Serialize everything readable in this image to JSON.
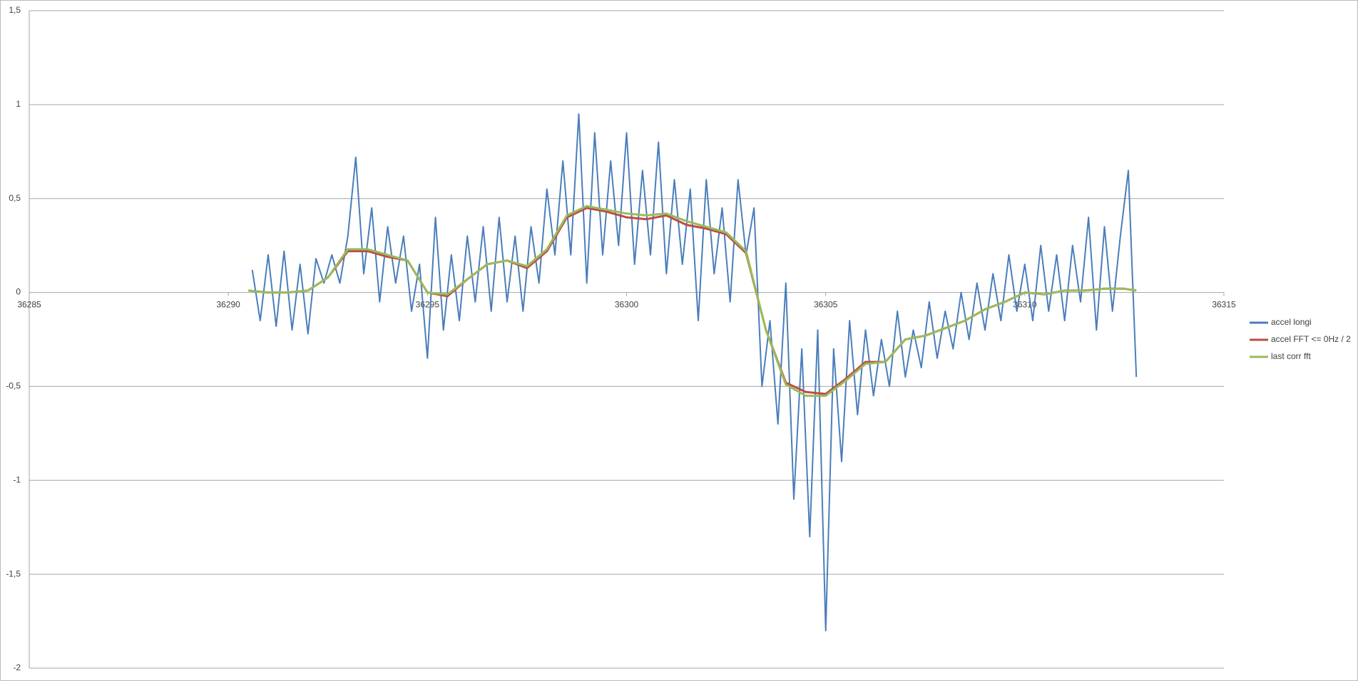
{
  "chart_data": {
    "type": "line",
    "xlim": [
      36285,
      36315
    ],
    "xticks": [
      36285,
      36290,
      36295,
      36300,
      36305,
      36310,
      36315
    ],
    "ylim": [
      -2,
      1.5
    ],
    "yticks": [
      -2,
      {
        "value": -1.5,
        "label": "-1,5"
      },
      -1,
      {
        "value": -0.5,
        "label": "-0,5"
      },
      0,
      {
        "value": 0.5,
        "label": "0,5"
      },
      1,
      {
        "value": 1.5,
        "label": "1,5"
      }
    ],
    "grid": true,
    "legend": "right",
    "series": [
      {
        "name": "accel longi",
        "color": "#4a7ebb",
        "x": [
          36290.6,
          36290.8,
          36291.0,
          36291.2,
          36291.4,
          36291.6,
          36291.8,
          36292.0,
          36292.2,
          36292.4,
          36292.6,
          36292.8,
          36293.0,
          36293.2,
          36293.4,
          36293.6,
          36293.8,
          36294.0,
          36294.2,
          36294.4,
          36294.6,
          36294.8,
          36295.0,
          36295.2,
          36295.4,
          36295.6,
          36295.8,
          36296.0,
          36296.2,
          36296.4,
          36296.6,
          36296.8,
          36297.0,
          36297.2,
          36297.4,
          36297.6,
          36297.8,
          36298.0,
          36298.2,
          36298.4,
          36298.6,
          36298.8,
          36299.0,
          36299.2,
          36299.4,
          36299.6,
          36299.8,
          36300.0,
          36300.2,
          36300.4,
          36300.6,
          36300.8,
          36301.0,
          36301.2,
          36301.4,
          36301.6,
          36301.8,
          36302.0,
          36302.2,
          36302.4,
          36302.6,
          36302.8,
          36303.0,
          36303.2,
          36303.4,
          36303.6,
          36303.8,
          36304.0,
          36304.2,
          36304.4,
          36304.6,
          36304.8,
          36305.0,
          36305.2,
          36305.4,
          36305.6,
          36305.8,
          36306.0,
          36306.2,
          36306.4,
          36306.6,
          36306.8,
          36307.0,
          36307.2,
          36307.4,
          36307.6,
          36307.8,
          36308.0,
          36308.2,
          36308.4,
          36308.6,
          36308.8,
          36309.0,
          36309.2,
          36309.4,
          36309.6,
          36309.8,
          36310.0,
          36310.2,
          36310.4,
          36310.6,
          36310.8,
          36311.0,
          36311.2,
          36311.4,
          36311.6,
          36311.8,
          36312.0,
          36312.2,
          36312.4,
          36312.6,
          36312.8
        ],
        "values": [
          0.12,
          -0.15,
          0.2,
          -0.18,
          0.22,
          -0.2,
          0.15,
          -0.22,
          0.18,
          0.05,
          0.2,
          0.05,
          0.3,
          0.72,
          0.1,
          0.45,
          -0.05,
          0.35,
          0.05,
          0.3,
          -0.1,
          0.15,
          -0.35,
          0.4,
          -0.2,
          0.2,
          -0.15,
          0.3,
          -0.05,
          0.35,
          -0.1,
          0.4,
          -0.05,
          0.3,
          -0.1,
          0.35,
          0.05,
          0.55,
          0.2,
          0.7,
          0.2,
          0.95,
          0.05,
          0.85,
          0.2,
          0.7,
          0.25,
          0.85,
          0.15,
          0.65,
          0.2,
          0.8,
          0.1,
          0.6,
          0.15,
          0.55,
          -0.15,
          0.6,
          0.1,
          0.45,
          -0.05,
          0.6,
          0.2,
          0.45,
          -0.5,
          -0.15,
          -0.7,
          0.05,
          -1.1,
          -0.3,
          -1.3,
          -0.2,
          -1.8,
          -0.3,
          -0.9,
          -0.15,
          -0.65,
          -0.2,
          -0.55,
          -0.25,
          -0.5,
          -0.1,
          -0.45,
          -0.2,
          -0.4,
          -0.05,
          -0.35,
          -0.1,
          -0.3,
          0.0,
          -0.25,
          0.05,
          -0.2,
          0.1,
          -0.15,
          0.2,
          -0.1,
          0.15,
          -0.15,
          0.25,
          -0.1,
          0.2,
          -0.15,
          0.25,
          -0.05,
          0.4,
          -0.2,
          0.35,
          -0.1,
          0.3,
          0.65,
          -0.45
        ]
      },
      {
        "name": "accel FFT <= 0Hz / 2",
        "color": "#be4b48",
        "x": [
          36290.5,
          36291,
          36291.5,
          36292,
          36292.5,
          36293,
          36293.5,
          36294,
          36294.5,
          36295,
          36295.5,
          36296,
          36296.5,
          36297,
          36297.5,
          36298,
          36298.5,
          36299,
          36299.5,
          36300,
          36300.5,
          36301,
          36301.5,
          36302,
          36302.5,
          36303,
          36303.5,
          36304,
          36304.5,
          36305,
          36305.5,
          36306,
          36306.5,
          36307,
          36307.5,
          36308,
          36308.5,
          36309,
          36309.5,
          36310,
          36310.5,
          36311,
          36311.5,
          36312,
          36312.5,
          36312.8
        ],
        "values": [
          0.01,
          0.0,
          0.0,
          0.01,
          0.08,
          0.22,
          0.22,
          0.19,
          0.17,
          0.0,
          -0.02,
          0.07,
          0.15,
          0.17,
          0.13,
          0.22,
          0.4,
          0.45,
          0.43,
          0.4,
          0.39,
          0.41,
          0.36,
          0.34,
          0.31,
          0.21,
          -0.2,
          -0.48,
          -0.53,
          -0.54,
          -0.46,
          -0.37,
          -0.37,
          -0.25,
          -0.23,
          -0.19,
          -0.15,
          -0.09,
          -0.05,
          0.0,
          -0.01,
          0.01,
          0.01,
          0.02,
          0.02,
          0.01
        ]
      },
      {
        "name": "last corr fft",
        "color": "#9bbb59",
        "x": [
          36290.5,
          36291,
          36291.5,
          36292,
          36292.5,
          36293,
          36293.5,
          36294,
          36294.5,
          36295,
          36295.5,
          36296,
          36296.5,
          36297,
          36297.5,
          36298,
          36298.5,
          36299,
          36299.5,
          36300,
          36300.5,
          36301,
          36301.5,
          36302,
          36302.5,
          36303,
          36303.5,
          36304,
          36304.5,
          36305,
          36305.5,
          36306,
          36306.5,
          36307,
          36307.5,
          36308,
          36308.5,
          36309,
          36309.5,
          36310,
          36310.5,
          36311,
          36311.5,
          36312,
          36312.5,
          36312.8
        ],
        "values": [
          0.01,
          0.0,
          0.0,
          0.01,
          0.08,
          0.23,
          0.23,
          0.2,
          0.17,
          0.0,
          -0.01,
          0.07,
          0.15,
          0.17,
          0.14,
          0.23,
          0.41,
          0.46,
          0.44,
          0.42,
          0.41,
          0.42,
          0.38,
          0.35,
          0.32,
          0.22,
          -0.2,
          -0.49,
          -0.55,
          -0.55,
          -0.47,
          -0.38,
          -0.37,
          -0.25,
          -0.23,
          -0.19,
          -0.15,
          -0.09,
          -0.05,
          0.0,
          -0.01,
          0.01,
          0.01,
          0.02,
          0.02,
          0.01
        ]
      }
    ]
  }
}
